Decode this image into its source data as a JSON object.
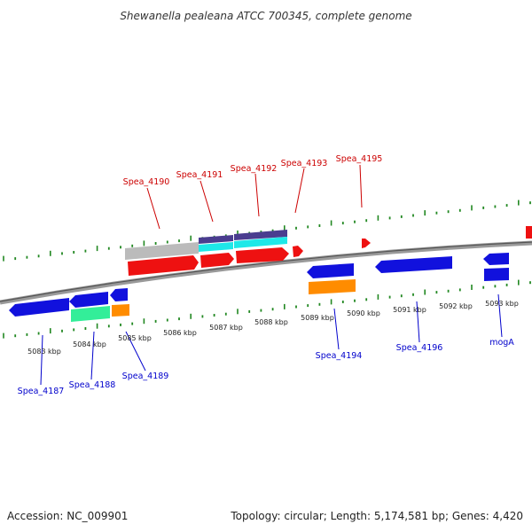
{
  "title": "Shewanella pealeana ATCC 700345, complete genome",
  "footer": {
    "accession": "Accession: NC_009901",
    "topology": "Topology: circular; Length: 5,174,581 bp; Genes: 4,420"
  },
  "colors": {
    "forward_label": "#cc0000",
    "reverse_label": "#0000cc",
    "forward_gene": "#ee1111",
    "reverse_gene": "#1111dd",
    "tick": "#228822",
    "backbone": "#888888",
    "grey_feature": "#bbbbbb",
    "navy_feature": "#4a3d8f",
    "cyan_feature": "#1ee8e8",
    "mint_feature": "#33ee99",
    "orange_feature": "#ff8c00"
  },
  "kbp_labels": [
    "5083 kbp",
    "5084 kbp",
    "5085 kbp",
    "5086 kbp",
    "5087 kbp",
    "5088 kbp",
    "5089 kbp",
    "5090 kbp",
    "5091 kbp",
    "5092 kbp",
    "5093 kbp"
  ],
  "forward_gene_labels": [
    "Spea_4190",
    "Spea_4191",
    "Spea_4192",
    "Spea_4193",
    "Spea_4195"
  ],
  "reverse_gene_labels": [
    "Spea_4187",
    "Spea_4188",
    "Spea_4189",
    "Spea_4194",
    "Spea_4196",
    "mogA"
  ]
}
